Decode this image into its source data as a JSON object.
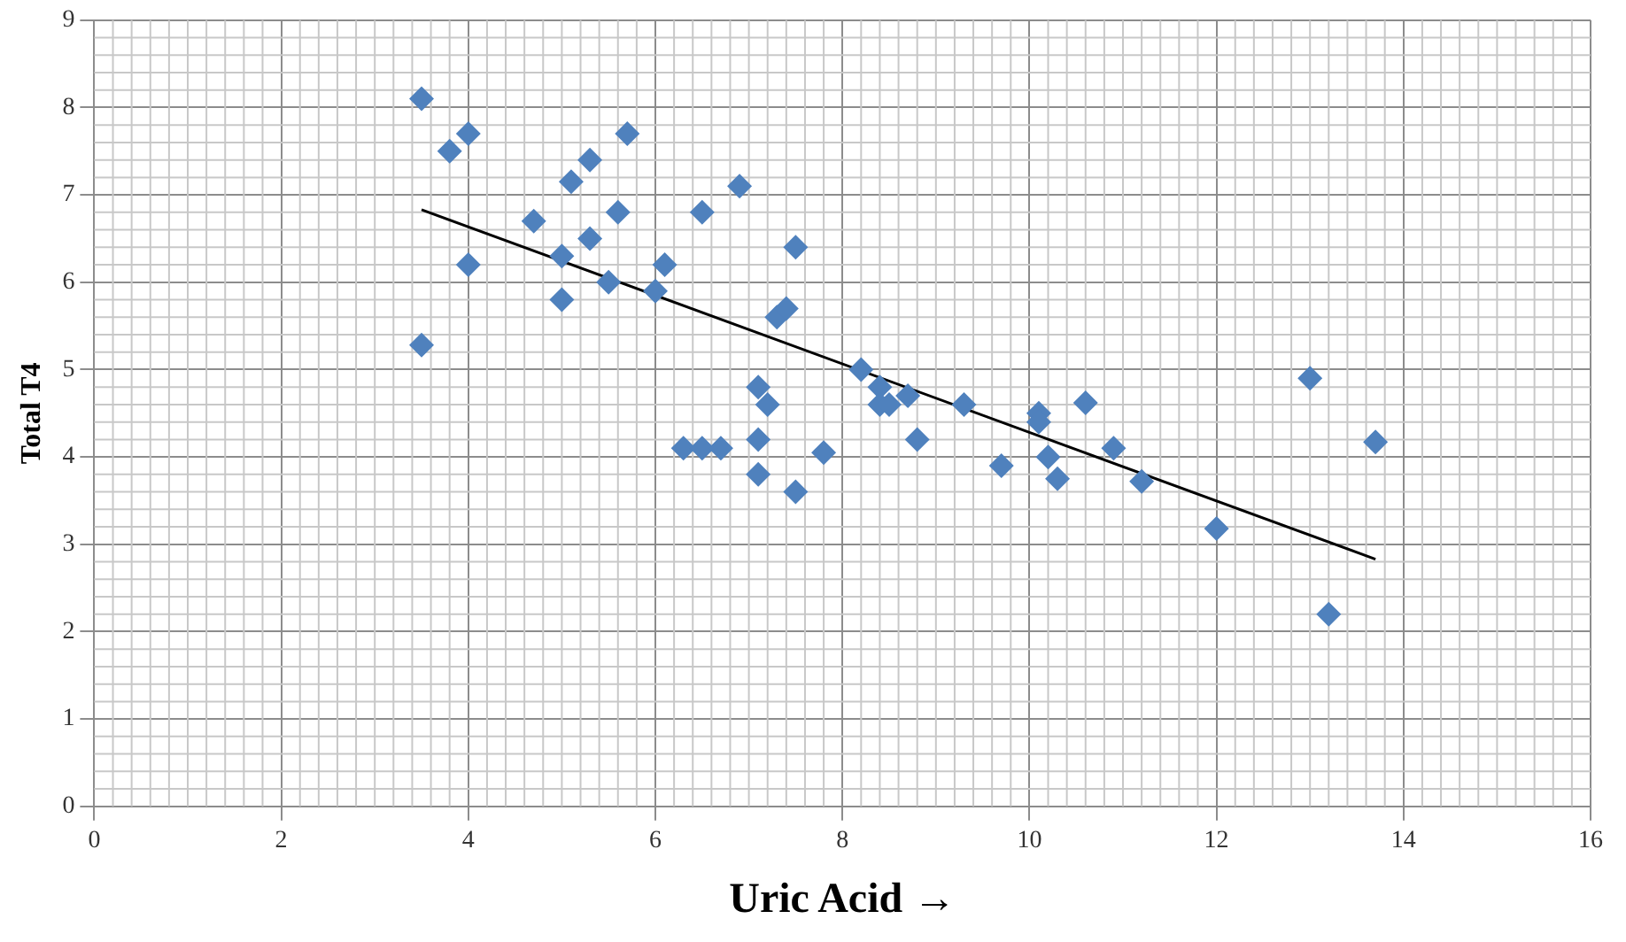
{
  "chart_data": {
    "type": "scatter",
    "xlabel": "Uric Acid →",
    "ylabel": "Total T4",
    "marker": "diamond",
    "grid": true,
    "legend": false,
    "xlim": [
      0,
      16
    ],
    "xticks": [
      0,
      2,
      4,
      6,
      8,
      10,
      12,
      14,
      16
    ],
    "ylim": [
      0,
      9
    ],
    "yticks": [
      0,
      1,
      2,
      3,
      4,
      5,
      6,
      7,
      8,
      9
    ],
    "series": [
      {
        "color": "#4f81bd",
        "x": [
          3.5,
          3.8,
          4.0,
          4.7,
          5.0,
          5.1,
          5.3,
          5.3,
          5.6,
          5.7,
          5.5,
          5.0,
          4.0,
          3.5,
          6.0,
          6.1,
          6.5,
          6.9,
          7.5,
          7.3,
          7.4,
          7.1,
          7.2,
          7.1,
          7.1,
          7.5,
          6.3,
          6.5,
          6.7,
          7.8,
          8.2,
          8.4,
          8.4,
          8.5,
          8.7,
          8.8,
          9.3,
          9.7,
          10.1,
          10.1,
          10.2,
          10.3,
          10.6,
          10.9,
          11.2,
          12.0,
          13.0,
          13.2,
          13.7
        ],
        "values": [
          8.1,
          7.5,
          7.7,
          6.7,
          6.3,
          7.15,
          7.4,
          6.5,
          6.8,
          7.7,
          6.0,
          5.8,
          6.2,
          5.28,
          5.9,
          6.2,
          6.8,
          7.1,
          6.4,
          5.6,
          5.7,
          4.8,
          4.6,
          4.2,
          3.8,
          3.6,
          4.1,
          4.1,
          4.1,
          4.05,
          5.0,
          4.8,
          4.6,
          4.6,
          4.7,
          4.2,
          4.6,
          3.9,
          4.5,
          4.4,
          4.0,
          3.75,
          4.62,
          4.1,
          3.72,
          3.18,
          4.9,
          2.2,
          4.17
        ]
      },
      {
        "type": "line",
        "color": "#000000",
        "marker": "none",
        "x": [
          3.5,
          13.7
        ],
        "values": [
          6.83,
          2.83
        ]
      }
    ]
  }
}
